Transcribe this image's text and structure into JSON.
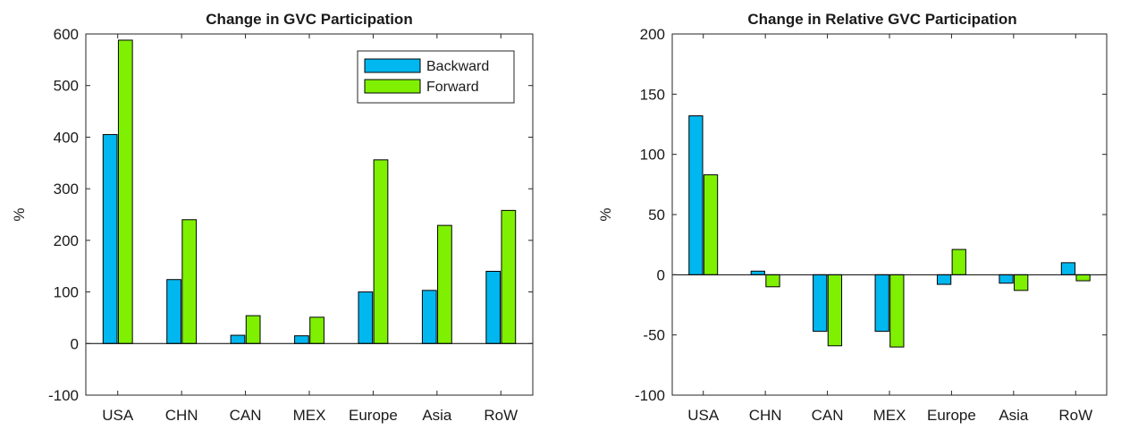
{
  "colors": {
    "backward": "#00b7ef",
    "forward": "#7ff000",
    "axis": "#262626"
  },
  "chart_data": [
    {
      "type": "bar",
      "title": "Change in GVC Participation",
      "xlabel": "",
      "ylabel": "%",
      "categories": [
        "USA",
        "CHN",
        "CAN",
        "MEX",
        "Europe",
        "Asia",
        "RoW"
      ],
      "ylim": [
        -100,
        600
      ],
      "yticks": [
        -100,
        0,
        100,
        200,
        300,
        400,
        500,
        600
      ],
      "grid": false,
      "legend": "top-right",
      "series": [
        {
          "name": "Backward",
          "values": [
            405,
            124,
            16,
            15,
            100,
            103,
            140
          ]
        },
        {
          "name": "Forward",
          "values": [
            588,
            240,
            54,
            51,
            356,
            229,
            258
          ]
        }
      ]
    },
    {
      "type": "bar",
      "title": "Change in Relative GVC Participation",
      "xlabel": "",
      "ylabel": "%",
      "categories": [
        "USA",
        "CHN",
        "CAN",
        "MEX",
        "Europe",
        "Asia",
        "RoW"
      ],
      "ylim": [
        -100,
        200
      ],
      "yticks": [
        -100,
        -50,
        0,
        50,
        100,
        150,
        200
      ],
      "grid": false,
      "legend": "none",
      "series": [
        {
          "values": [
            132,
            3,
            -47,
            -47,
            -8,
            -7,
            10
          ]
        },
        {
          "values": [
            83,
            -10,
            -59,
            -60,
            21,
            -13,
            -5
          ]
        }
      ]
    }
  ]
}
